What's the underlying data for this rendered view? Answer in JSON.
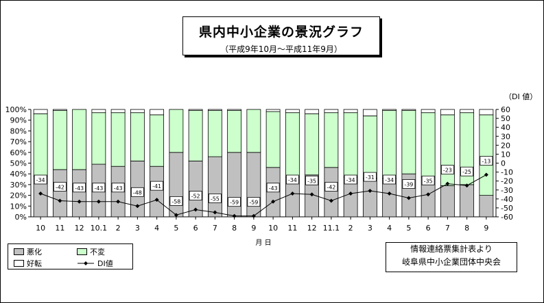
{
  "title": "県内中小企業の景況グラフ",
  "subtitle": "（平成9年10月～平成11年9月）",
  "right_axis_label": "（DI 値）",
  "x_axis_label": "月 日",
  "legend": {
    "bad": "悪化",
    "same": "不変",
    "good": "好転",
    "di": "DI値"
  },
  "source_line1": "情報連絡票集計表より",
  "source_line2": "岐阜県中小企業団体中央会",
  "colors": {
    "bad": "#c0c0c0",
    "same": "#ccffcc",
    "good": "#ffffff",
    "line": "#000000"
  },
  "chart_data": {
    "type": "bar",
    "stacked": true,
    "percent": true,
    "categories": [
      "10",
      "11",
      "12",
      "10.1",
      "2",
      "3",
      "4",
      "5",
      "6",
      "7",
      "8",
      "9",
      "10",
      "11",
      "12",
      "11.1",
      "2",
      "3",
      "4",
      "5",
      "6",
      "7",
      "8",
      "9"
    ],
    "series": [
      {
        "name": "悪化",
        "values": [
          38,
          44,
          44,
          49,
          47,
          52,
          47,
          60,
          52,
          56,
          60,
          60,
          46,
          37,
          39,
          46,
          37,
          36,
          36,
          40,
          37,
          29,
          30,
          20
        ]
      },
      {
        "name": "不変",
        "values": [
          58,
          55,
          56,
          48,
          50,
          45,
          48,
          40,
          47,
          43,
          39,
          40,
          52,
          60,
          57,
          51,
          60,
          58,
          63,
          59,
          60,
          66,
          67,
          75
        ]
      },
      {
        "name": "好転",
        "values": [
          4,
          1,
          0,
          3,
          3,
          3,
          5,
          0,
          1,
          1,
          1,
          0,
          2,
          3,
          4,
          3,
          3,
          6,
          1,
          1,
          3,
          5,
          3,
          5
        ]
      },
      {
        "name": "DI値",
        "type": "line",
        "values": [
          -34,
          -42,
          -43,
          -43,
          -43,
          -48,
          -41,
          -58,
          -52,
          -55,
          -59,
          -59,
          -43,
          -34,
          -35,
          -42,
          -34,
          -31,
          -34,
          -39,
          -35,
          -23,
          -25,
          -13
        ]
      }
    ],
    "y_left": {
      "min": 0,
      "max": 100,
      "step": 10,
      "format": "percent"
    },
    "y_right": {
      "min": -60,
      "max": 60,
      "step": 10
    },
    "grid": false
  }
}
